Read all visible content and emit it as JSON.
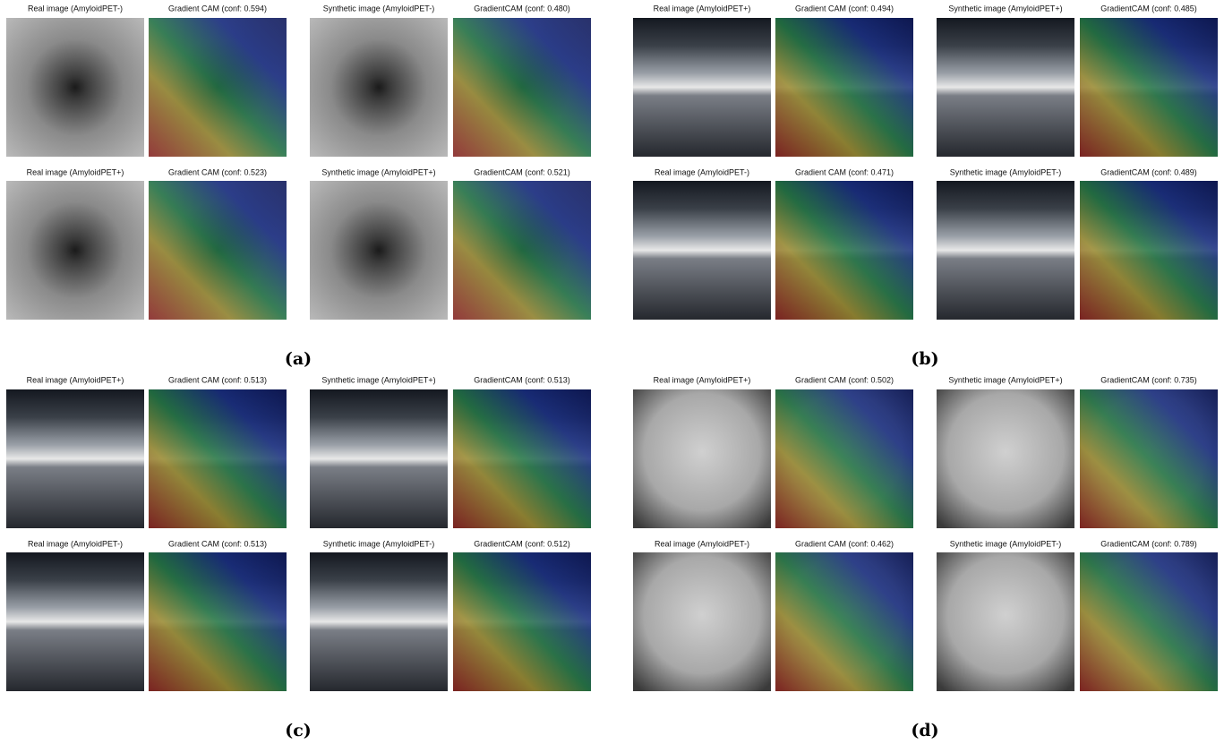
{
  "panels": [
    {
      "label": "(a)",
      "rows": [
        [
          "Real image (AmyloidPET-)",
          "Gradient CAM (conf: 0.594)",
          "Synthetic image (AmyloidPET-)",
          "GradientCAM (conf: 0.480)"
        ],
        [
          "Real image (AmyloidPET+)",
          "Gradient CAM (conf: 0.523)",
          "Synthetic image (AmyloidPET+)",
          "GradientCAM (conf: 0.521)"
        ]
      ]
    },
    {
      "label": "(b)",
      "rows": [
        [
          "Real image (AmyloidPET+)",
          "Gradient CAM (conf: 0.494)",
          "Synthetic image (AmyloidPET+)",
          "GradientCAM (conf: 0.485)"
        ],
        [
          "Real image (AmyloidPET-)",
          "Gradient CAM (conf: 0.471)",
          "Synthetic image (AmyloidPET-)",
          "GradientCAM (conf: 0.489)"
        ]
      ]
    },
    {
      "label": "(c)",
      "rows": [
        [
          "Real image (AmyloidPET+)",
          "Gradient CAM (conf: 0.513)",
          "Synthetic image (AmyloidPET+)",
          "GradientCAM (conf: 0.513)"
        ],
        [
          "Real image (AmyloidPET-)",
          "Gradient CAM (conf: 0.513)",
          "Synthetic image (AmyloidPET-)",
          "GradientCAM (conf: 0.512)"
        ]
      ]
    },
    {
      "label": "(d)",
      "rows": [
        [
          "Real image (AmyloidPET+)",
          "Gradient CAM (conf: 0.502)",
          "Synthetic image (AmyloidPET+)",
          "GradientCAM (conf: 0.735)"
        ],
        [
          "Real image (AmyloidPET-)",
          "Gradient CAM (conf: 0.462)",
          "Synthetic image (AmyloidPET-)",
          "GradientCAM (conf: 0.789)"
        ]
      ]
    }
  ]
}
